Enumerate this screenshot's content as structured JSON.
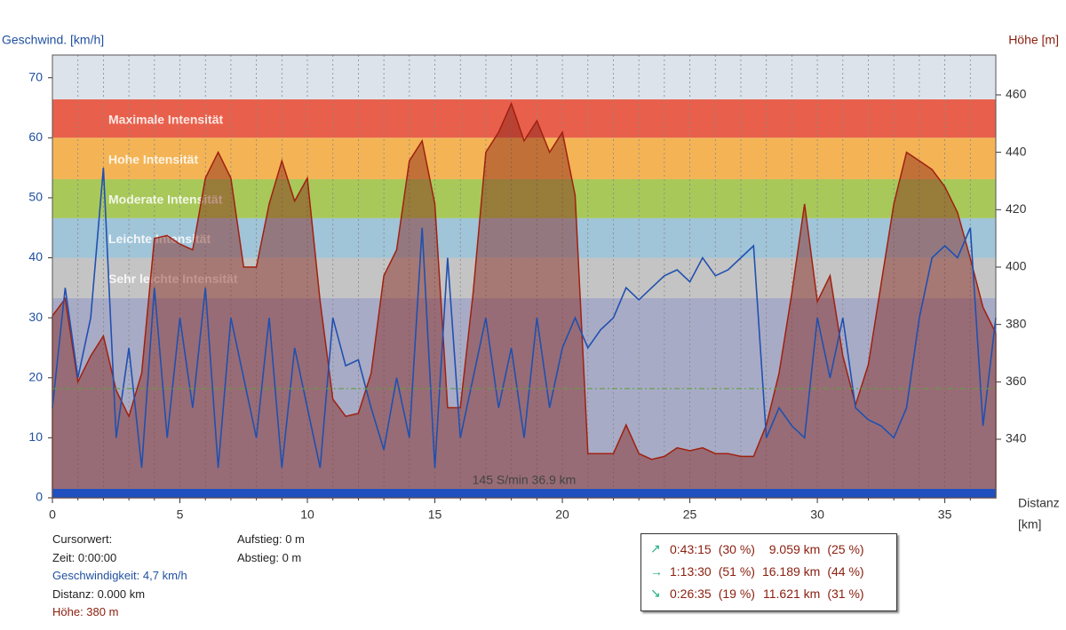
{
  "chart_data": {
    "type": "line",
    "y_label": "Geschwind. [km/h]",
    "y2_label": "Höhe [m]",
    "x_label": [
      "Distanz",
      "[km]"
    ],
    "xlim": [
      0,
      37
    ],
    "ylim": [
      0,
      73.8
    ],
    "y2lim": [
      319.6,
      473.9
    ],
    "xticks": [
      0,
      5,
      10,
      15,
      20,
      25,
      30,
      35
    ],
    "x_minor_ticks": [
      1,
      2,
      3,
      4,
      6,
      7,
      8,
      9,
      11,
      12,
      13,
      14,
      16,
      17,
      18,
      19,
      21,
      22,
      23,
      24,
      26,
      27,
      28,
      29,
      31,
      32,
      33,
      34,
      36
    ],
    "yticks": [
      0,
      10,
      20,
      30,
      40,
      50,
      60,
      70
    ],
    "y2ticks": [
      340,
      360,
      380,
      400,
      420,
      440,
      460
    ],
    "bands": [
      {
        "label": "Maximale Intensität",
        "from": 60,
        "to": 66.4,
        "color": "#e8604c"
      },
      {
        "label": "Hohe Intensität",
        "from": 53.1,
        "to": 60,
        "color": "#f4b455"
      },
      {
        "label": "Moderate Intensität",
        "from": 46.6,
        "to": 53.1,
        "color": "#a8c85a"
      },
      {
        "label": "Leichte Intensität",
        "from": 40,
        "to": 46.6,
        "color": "#a0c4d8"
      },
      {
        "label": "Sehr leichte Intensität",
        "from": 33.3,
        "to": 40,
        "color": "#c4c4c4"
      }
    ],
    "reference_line": {
      "value": 18.2,
      "color": "#60a040"
    },
    "footer_text": "145 S/min  36.9 km",
    "x": [
      0,
      0.5,
      1,
      1.5,
      2,
      2.5,
      3,
      3.5,
      4,
      4.5,
      5,
      5.5,
      6,
      6.5,
      7,
      7.5,
      8,
      8.5,
      9,
      9.5,
      10,
      10.5,
      11,
      11.5,
      12,
      12.5,
      13,
      13.5,
      14,
      14.5,
      15,
      15.5,
      16,
      16.5,
      17,
      17.5,
      18,
      18.5,
      19,
      19.5,
      20,
      20.5,
      21,
      21.5,
      22,
      22.5,
      23,
      23.5,
      24,
      24.5,
      25,
      25.5,
      26,
      26.5,
      27,
      27.5,
      28,
      28.5,
      29,
      29.5,
      30,
      30.5,
      31,
      31.5,
      32,
      32.5,
      33,
      33.5,
      34,
      34.5,
      35,
      35.5,
      36,
      36.5,
      37
    ],
    "series": [
      {
        "name": "Höhe",
        "axis": "y2",
        "color": "#a02010",
        "values": [
          383,
          389,
          360,
          369,
          376,
          357,
          348,
          363,
          410,
          411,
          408,
          406,
          431,
          440,
          431,
          400,
          400,
          422,
          437,
          423,
          431,
          388,
          354,
          348,
          349,
          363,
          397,
          406,
          437,
          444,
          422,
          351,
          351,
          391,
          440,
          447,
          457,
          444,
          451,
          440,
          447,
          425,
          335,
          335,
          335,
          345,
          335,
          333,
          334,
          337,
          336,
          337,
          335,
          335,
          334,
          334,
          345,
          363,
          391,
          422,
          388,
          397,
          369,
          352,
          366,
          394,
          422,
          440,
          437,
          434,
          428,
          419,
          403,
          386,
          377
        ]
      },
      {
        "name": "Geschwindigkeit",
        "color": "#2050b0",
        "values": [
          15,
          35,
          20,
          30,
          55,
          10,
          25,
          5,
          35,
          10,
          30,
          15,
          35,
          5,
          30,
          20,
          10,
          30,
          5,
          25,
          15,
          5,
          30,
          22,
          23,
          15,
          8,
          20,
          10,
          45,
          5,
          40,
          10,
          20,
          30,
          15,
          25,
          10,
          30,
          15,
          25,
          30,
          25,
          28,
          30,
          35,
          33,
          35,
          37,
          38,
          36,
          40,
          37,
          38,
          40,
          42,
          10,
          15,
          12,
          10,
          30,
          20,
          30,
          15,
          13,
          12,
          10,
          15,
          30,
          40,
          42,
          40,
          45,
          12,
          30
        ]
      }
    ]
  },
  "info": {
    "cursor": "Cursorwert:",
    "time": "Zeit: 0:00:00",
    "speed": "Geschwindigkeit: 4,7 km/h",
    "distance": "Distanz: 0.000 km",
    "height": "Höhe:  380 m",
    "ascent": "Aufstieg: 0 m",
    "descent": "Abstieg: 0 m"
  },
  "stats": {
    "rows": [
      [
        "↗",
        "0:43:15",
        "(30 %)",
        "9.059 km",
        "(25 %)"
      ],
      [
        "→",
        "1:13:30",
        "(51 %)",
        "16.189 km",
        "(44 %)"
      ],
      [
        "↘",
        "0:26:35",
        "(19 %)",
        "11.621 km",
        "(31 %)"
      ]
    ]
  }
}
